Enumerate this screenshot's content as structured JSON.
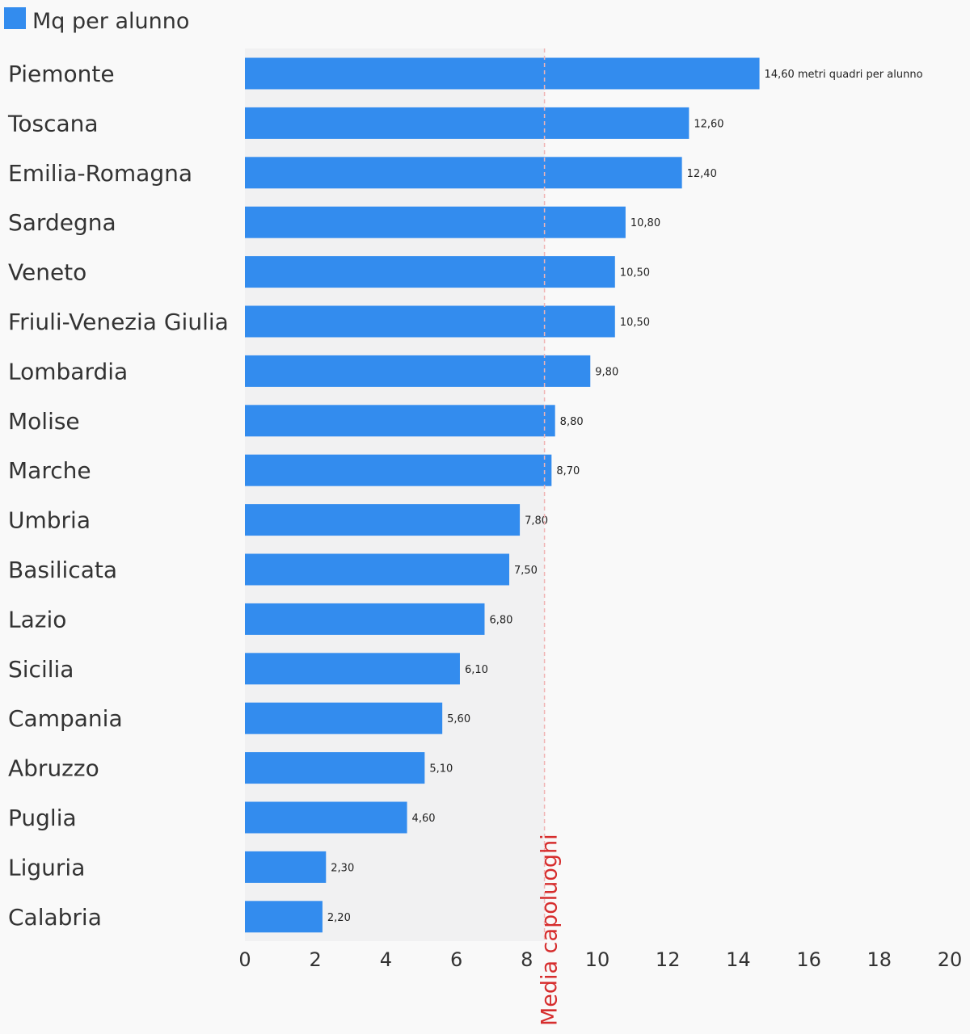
{
  "chart_data": {
    "type": "bar",
    "orientation": "horizontal",
    "series": [
      {
        "name": "Mq per alunno",
        "color": "#338cee",
        "values": [
          14.6,
          12.6,
          12.4,
          10.8,
          10.5,
          10.5,
          9.8,
          8.8,
          8.7,
          7.8,
          7.5,
          6.8,
          6.1,
          5.6,
          5.1,
          4.6,
          2.3,
          2.2
        ]
      }
    ],
    "categories": [
      "Piemonte",
      "Toscana",
      "Emilia-Romagna",
      "Sardegna",
      "Veneto",
      "Friuli-Venezia Giulia",
      "Lombardia",
      "Molise",
      "Marche",
      "Umbria",
      "Basilicata",
      "Lazio",
      "Sicilia",
      "Campania",
      "Abruzzo",
      "Puglia",
      "Liguria",
      "Calabria"
    ],
    "value_labels": [
      "14,60 metri quadri per alunno",
      "12,60",
      "12,40",
      "10,80",
      "10,50",
      "10,50",
      "9,80",
      "8,80",
      "8,70",
      "7,80",
      "7,50",
      "6,80",
      "6,10",
      "5,60",
      "5,10",
      "4,60",
      "2,30",
      "2,20"
    ],
    "xlim": [
      0,
      20
    ],
    "x_ticks": [
      0,
      2,
      4,
      6,
      8,
      10,
      12,
      14,
      16,
      18,
      20
    ],
    "x_tick_labels": [
      "0",
      "2",
      "4",
      "6",
      "8",
      "10",
      "12",
      "14",
      "16",
      "18",
      "20"
    ],
    "reference_line": {
      "label": "Media capoluoghi",
      "value": 8.5,
      "color": "#d62d2d",
      "style": "dashed"
    },
    "shaded_band": {
      "from": 0,
      "to": 8.5,
      "color": "#f1f1f2"
    },
    "legend_position": "top-left",
    "grid": false
  }
}
